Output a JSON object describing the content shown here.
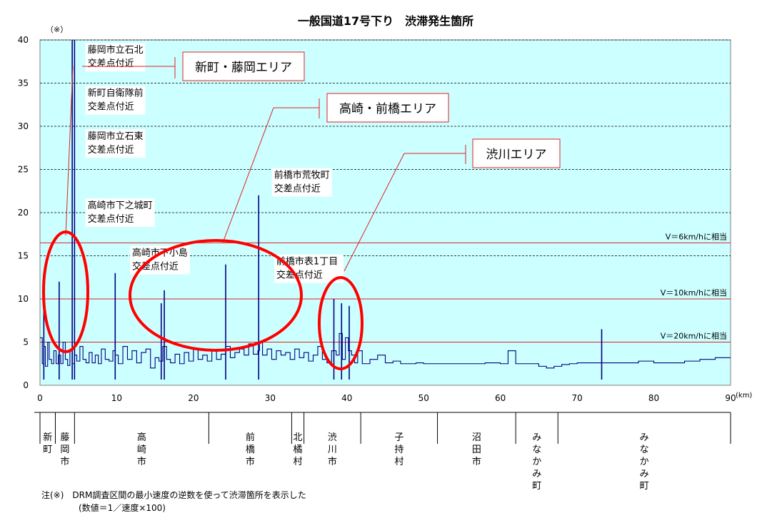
{
  "chart_data": {
    "type": "line",
    "title": "一般国道17号下り　渋滞発生箇所",
    "y_unit_label": "（※）",
    "x_unit_label": "(km)",
    "xlim": [
      0,
      90
    ],
    "ylim": [
      0,
      40
    ],
    "x_ticks": [
      "0",
      "10",
      "20",
      "30",
      "40",
      "50",
      "60",
      "70",
      "80",
      "90"
    ],
    "y_ticks": [
      "0",
      "5",
      "10",
      "15",
      "20",
      "25",
      "30",
      "35",
      "40"
    ],
    "reference_lines": [
      {
        "y": 16.5,
        "label": "V＝6km/hに相当"
      },
      {
        "y": 10,
        "label": "V＝10km/hに相当"
      },
      {
        "y": 5,
        "label": "V＝20km/hに相当"
      }
    ],
    "series": [
      {
        "x": [
          0,
          0.3,
          0.5,
          0.7,
          1.0,
          1.2,
          1.5,
          1.8,
          2.1,
          2.4,
          2.7,
          3.0,
          3.3,
          3.6,
          3.9,
          4.2,
          4.5,
          4.8,
          5.2,
          5.6,
          6.0,
          6.4,
          6.8,
          7.2,
          7.6,
          8.0,
          8.5,
          9.0,
          9.5,
          9.8,
          10.2,
          10.8,
          11.4,
          12.0,
          12.6,
          13.2,
          13.8,
          14.4,
          15.0,
          15.5,
          16.0,
          16.5,
          17.0,
          17.6,
          18.2,
          18.8,
          19.4,
          20.0,
          20.6,
          21.2,
          21.8,
          22.4,
          23.0,
          23.6,
          24.2,
          24.8,
          25.4,
          26.0,
          26.6,
          27.2,
          27.8,
          28.4,
          28.6,
          29.0,
          29.6,
          30.2,
          30.8,
          31.4,
          32.0,
          32.6,
          33.2,
          33.8,
          34.4,
          35.0,
          35.6,
          36.2,
          36.8,
          37.4,
          38.0,
          38.6,
          39.0,
          39.4,
          39.8,
          40.2,
          40.6,
          41.0,
          41.4,
          42.0,
          43.0,
          44.0,
          45.0,
          46.0,
          47.0,
          48.0,
          49.0,
          50.0,
          52.0,
          54.0,
          56.0,
          58.0,
          60.0,
          61.0,
          62.0,
          63.0,
          64.0,
          65.0,
          66.0,
          67.0,
          68.0,
          69.0,
          70.0,
          72.0,
          74.0,
          76.0,
          78.0,
          80.0,
          82.0,
          84.0,
          86.0,
          88.0,
          90.0
        ],
        "y": [
          5.5,
          2.5,
          4.5,
          2.2,
          5.0,
          3.0,
          2.5,
          4.0,
          2.5,
          3.5,
          2.5,
          5.0,
          3.0,
          2.3,
          4.0,
          2.5,
          3.5,
          2.8,
          4.5,
          3.0,
          2.6,
          3.8,
          2.6,
          3.5,
          2.5,
          4.2,
          3.0,
          2.8,
          4.0,
          3.5,
          2.5,
          4.5,
          3.0,
          4.0,
          2.6,
          3.8,
          4.2,
          2.0,
          3.2,
          2.8,
          4.5,
          3.0,
          2.6,
          3.6,
          2.5,
          3.8,
          2.8,
          4.2,
          3.0,
          3.5,
          2.8,
          4.0,
          3.0,
          3.6,
          4.5,
          3.2,
          3.8,
          4.2,
          3.5,
          4.8,
          3.6,
          4.0,
          5.0,
          3.5,
          4.2,
          3.0,
          4.0,
          3.5,
          3.8,
          3.0,
          4.2,
          3.2,
          3.8,
          2.8,
          3.5,
          4.5,
          3.0,
          2.6,
          4.0,
          3.5,
          6.0,
          3.0,
          5.5,
          4.0,
          3.5,
          2.6,
          4.0,
          2.5,
          3.0,
          3.5,
          2.6,
          2.8,
          2.5,
          2.5,
          2.6,
          2.5,
          2.5,
          2.5,
          2.5,
          2.6,
          2.5,
          4.0,
          2.5,
          2.5,
          2.5,
          2.2,
          2.0,
          2.2,
          2.4,
          2.5,
          2.6,
          2.6,
          2.6,
          2.6,
          2.8,
          2.6,
          2.6,
          2.8,
          3.0,
          3.2,
          3.2
        ],
        "spikes": [
          {
            "x": 0.5,
            "y": 10.5
          },
          {
            "x": 2.5,
            "y": 12.0
          },
          {
            "x": 4.2,
            "y": 40
          },
          {
            "x": 4.5,
            "y": 40
          },
          {
            "x": 9.8,
            "y": 13.0
          },
          {
            "x": 15.8,
            "y": 9.5
          },
          {
            "x": 16.2,
            "y": 11.0
          },
          {
            "x": 24.2,
            "y": 14.0
          },
          {
            "x": 28.5,
            "y": 22.0
          },
          {
            "x": 38.3,
            "y": 10.0
          },
          {
            "x": 39.3,
            "y": 9.5
          },
          {
            "x": 40.3,
            "y": 9.2
          },
          {
            "x": 73.2,
            "y": 6.5
          }
        ]
      }
    ],
    "annotations": [
      {
        "text": [
          "藤岡市立石北",
          "交差点付近"
        ],
        "x": 6.2,
        "y": 38.5
      },
      {
        "text": [
          "新町自衛隊前",
          "交差点付近"
        ],
        "x": 6.2,
        "y": 33.5
      },
      {
        "text": [
          "藤岡市立石東",
          "交差点付近"
        ],
        "x": 6.2,
        "y": 28.5
      },
      {
        "text": [
          "高崎市下之城町",
          "交差点付近"
        ],
        "x": 6.2,
        "y": 20.5
      },
      {
        "text": [
          "高崎市下小島",
          "交差点付近"
        ],
        "x": 12.0,
        "y": 15.0
      },
      {
        "text": [
          "前橋市荒牧町",
          "交差点付近"
        ],
        "x": 30.5,
        "y": 24.0
      },
      {
        "text": [
          "前橋市表1丁目",
          "交差点付近"
        ],
        "x": 30.8,
        "y": 14.0
      }
    ],
    "areas": [
      {
        "label": "新町・藤岡エリア"
      },
      {
        "label": "高崎・前橋エリア"
      },
      {
        "label": "渋川エリア"
      }
    ],
    "municipalities": [
      {
        "name": "新町",
        "from": 0,
        "to": 2.0
      },
      {
        "name": "藤岡市",
        "from": 2.0,
        "to": 4.5
      },
      {
        "name": "高崎市",
        "from": 4.5,
        "to": 22.0
      },
      {
        "name": "前橋市",
        "from": 22.0,
        "to": 32.8
      },
      {
        "name": "北橘村",
        "from": 32.8,
        "to": 34.4
      },
      {
        "name": "渋川市",
        "from": 34.4,
        "to": 41.8
      },
      {
        "name": "子持村",
        "from": 41.8,
        "to": 51.8
      },
      {
        "name": "沼田市",
        "from": 51.8,
        "to": 62.0
      },
      {
        "name": "みなかみ町",
        "from": 62.0,
        "to": 67.5
      },
      {
        "name": "みなかみ町",
        "from": 67.5,
        "to": 90.0
      }
    ],
    "notes": [
      "注(※)　DRM調査区間の最小速度の逆数を使って渋滞箇所を表示した",
      "(数値＝1／速度×100)"
    ],
    "grid": true,
    "colors": {
      "background": "#CCFFFF",
      "series": "#000080",
      "reference": "#E02020",
      "highlight": "#FF0000"
    }
  }
}
